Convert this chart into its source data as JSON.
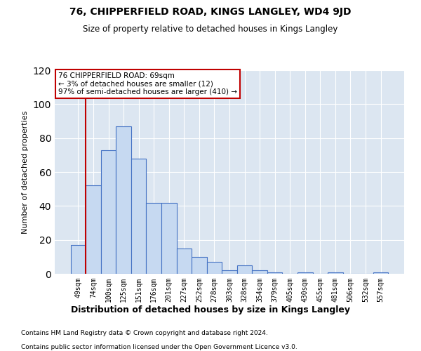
{
  "title1": "76, CHIPPERFIELD ROAD, KINGS LANGLEY, WD4 9JD",
  "title2": "Size of property relative to detached houses in Kings Langley",
  "xlabel": "Distribution of detached houses by size in Kings Langley",
  "ylabel": "Number of detached properties",
  "footnote1": "Contains HM Land Registry data © Crown copyright and database right 2024.",
  "footnote2": "Contains public sector information licensed under the Open Government Licence v3.0.",
  "annotation_line1": "76 CHIPPERFIELD ROAD: 69sqm",
  "annotation_line2": "← 3% of detached houses are smaller (12)",
  "annotation_line3": "97% of semi-detached houses are larger (410) →",
  "bar_labels": [
    "49sqm",
    "74sqm",
    "100sqm",
    "125sqm",
    "151sqm",
    "176sqm",
    "201sqm",
    "227sqm",
    "252sqm",
    "278sqm",
    "303sqm",
    "328sqm",
    "354sqm",
    "379sqm",
    "405sqm",
    "430sqm",
    "455sqm",
    "481sqm",
    "506sqm",
    "532sqm",
    "557sqm"
  ],
  "bar_values": [
    17,
    52,
    73,
    87,
    68,
    42,
    42,
    15,
    10,
    7,
    2,
    5,
    2,
    1,
    0,
    1,
    0,
    1,
    0,
    0,
    1
  ],
  "bar_color": "#c6d9f1",
  "bar_edge_color": "#4472c4",
  "vline_color": "#c00000",
  "vline_pos": 0.5,
  "annotation_box_color": "#c00000",
  "background_color": "#ffffff",
  "plot_bg_color": "#dce6f1",
  "grid_color": "#ffffff",
  "ylim": [
    0,
    120
  ],
  "yticks": [
    0,
    20,
    40,
    60,
    80,
    100,
    120
  ]
}
